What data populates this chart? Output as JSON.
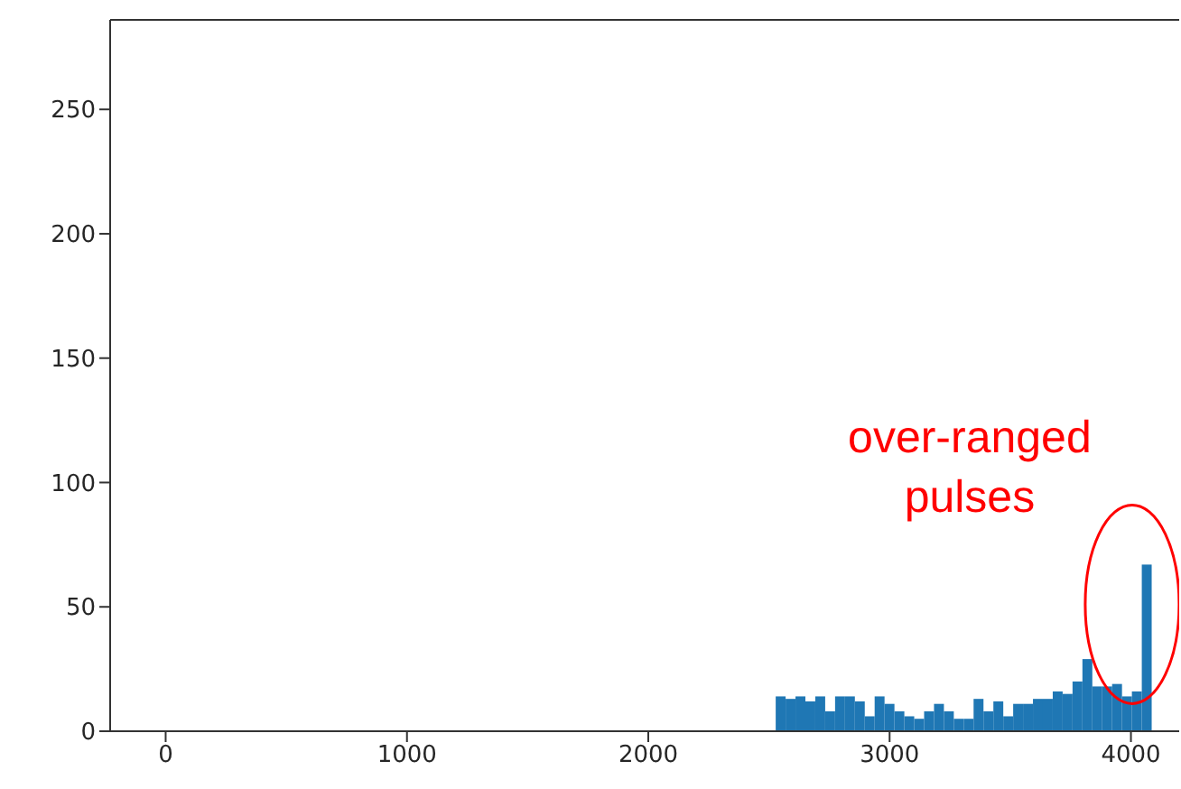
{
  "chart_data": {
    "type": "histogram",
    "bins": [
      2528,
      2569,
      2610,
      2651,
      2692,
      2733,
      2774,
      2815,
      2856,
      2897,
      2938,
      2979,
      3020,
      3061,
      3102,
      3143,
      3184,
      3225,
      3266,
      3307,
      3348,
      3389,
      3430,
      3471,
      3512,
      3553,
      3594,
      3635,
      3676,
      3717,
      3758,
      3799,
      3840,
      3881,
      3922,
      3963,
      4004,
      4045,
      4086
    ],
    "values": [
      14,
      13,
      14,
      12,
      14,
      8,
      14,
      14,
      12,
      6,
      14,
      11,
      8,
      6,
      5,
      8,
      11,
      8,
      5,
      5,
      13,
      8,
      12,
      6,
      11,
      11,
      13,
      13,
      16,
      15,
      20,
      29,
      18,
      18,
      19,
      14,
      16,
      67
    ],
    "color": "#1f77b4",
    "xlim": [
      -230,
      4200
    ],
    "xticks": [
      0,
      1000,
      2000,
      3000,
      4000
    ],
    "ylim": [
      0,
      286
    ],
    "yticks": [
      0,
      50,
      100,
      150,
      200,
      250
    ],
    "annotations": [
      {
        "text": "over-ranged pulses",
        "x": 4065,
        "y": 67
      }
    ]
  }
}
